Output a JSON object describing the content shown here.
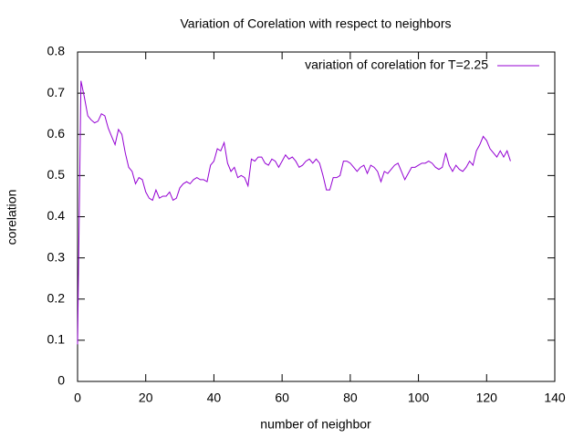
{
  "chart_data": {
    "type": "line",
    "title": "Variation of Corelation with respect to neighbors",
    "x_label": "number of neighbor",
    "y_label": "corelation",
    "x": [
      0,
      1,
      2,
      3,
      4,
      5,
      6,
      7,
      8,
      9,
      10,
      11,
      12,
      13,
      14,
      15,
      16,
      17,
      18,
      19,
      20,
      21,
      22,
      23,
      24,
      25,
      26,
      27,
      28,
      29,
      30,
      31,
      32,
      33,
      34,
      35,
      36,
      37,
      38,
      39,
      40,
      41,
      42,
      43,
      44,
      45,
      46,
      47,
      48,
      49,
      50,
      51,
      52,
      53,
      54,
      55,
      56,
      57,
      58,
      59,
      60,
      61,
      62,
      63,
      64,
      65,
      66,
      67,
      68,
      69,
      70,
      71,
      72,
      73,
      74,
      75,
      76,
      77,
      78,
      79,
      80,
      81,
      82,
      83,
      84,
      85,
      86,
      87,
      88,
      89,
      90,
      91,
      92,
      93,
      94,
      95,
      96,
      97,
      98,
      99,
      100,
      101,
      102,
      103,
      104,
      105,
      106,
      107,
      108,
      109,
      110,
      111,
      112,
      113,
      114,
      115,
      116,
      117,
      118,
      119,
      120,
      121,
      122,
      123,
      124,
      125,
      126,
      127
    ],
    "series": [
      {
        "name": "variation of corelation for T=2.25",
        "color": "#9400d3",
        "values": [
          0.09,
          0.73,
          0.69,
          0.645,
          0.635,
          0.628,
          0.632,
          0.65,
          0.645,
          0.615,
          0.595,
          0.575,
          0.612,
          0.6,
          0.555,
          0.52,
          0.51,
          0.48,
          0.495,
          0.49,
          0.46,
          0.445,
          0.44,
          0.465,
          0.445,
          0.45,
          0.45,
          0.46,
          0.44,
          0.445,
          0.47,
          0.48,
          0.485,
          0.48,
          0.49,
          0.495,
          0.49,
          0.49,
          0.485,
          0.525,
          0.535,
          0.565,
          0.56,
          0.58,
          0.53,
          0.51,
          0.52,
          0.495,
          0.5,
          0.495,
          0.475,
          0.54,
          0.535,
          0.545,
          0.545,
          0.53,
          0.525,
          0.54,
          0.535,
          0.52,
          0.535,
          0.55,
          0.54,
          0.545,
          0.535,
          0.52,
          0.525,
          0.535,
          0.54,
          0.53,
          0.54,
          0.53,
          0.5,
          0.465,
          0.465,
          0.495,
          0.495,
          0.5,
          0.535,
          0.535,
          0.53,
          0.52,
          0.51,
          0.52,
          0.525,
          0.505,
          0.525,
          0.52,
          0.51,
          0.485,
          0.51,
          0.505,
          0.515,
          0.525,
          0.53,
          0.51,
          0.49,
          0.505,
          0.52,
          0.52,
          0.525,
          0.53,
          0.53,
          0.535,
          0.53,
          0.52,
          0.515,
          0.52,
          0.555,
          0.525,
          0.51,
          0.525,
          0.515,
          0.51,
          0.52,
          0.535,
          0.525,
          0.56,
          0.575,
          0.595,
          0.585,
          0.565,
          0.555,
          0.545,
          0.56,
          0.545,
          0.56,
          0.535
        ]
      }
    ],
    "xlim": [
      0,
      140
    ],
    "xticks": [
      0,
      20,
      40,
      60,
      80,
      100,
      120,
      140
    ],
    "ylim": [
      0,
      0.8
    ],
    "yticks": [
      0,
      0.1,
      0.2,
      0.3,
      0.4,
      0.5,
      0.6,
      0.7,
      0.8
    ],
    "legend": "top-right",
    "grid": false
  }
}
